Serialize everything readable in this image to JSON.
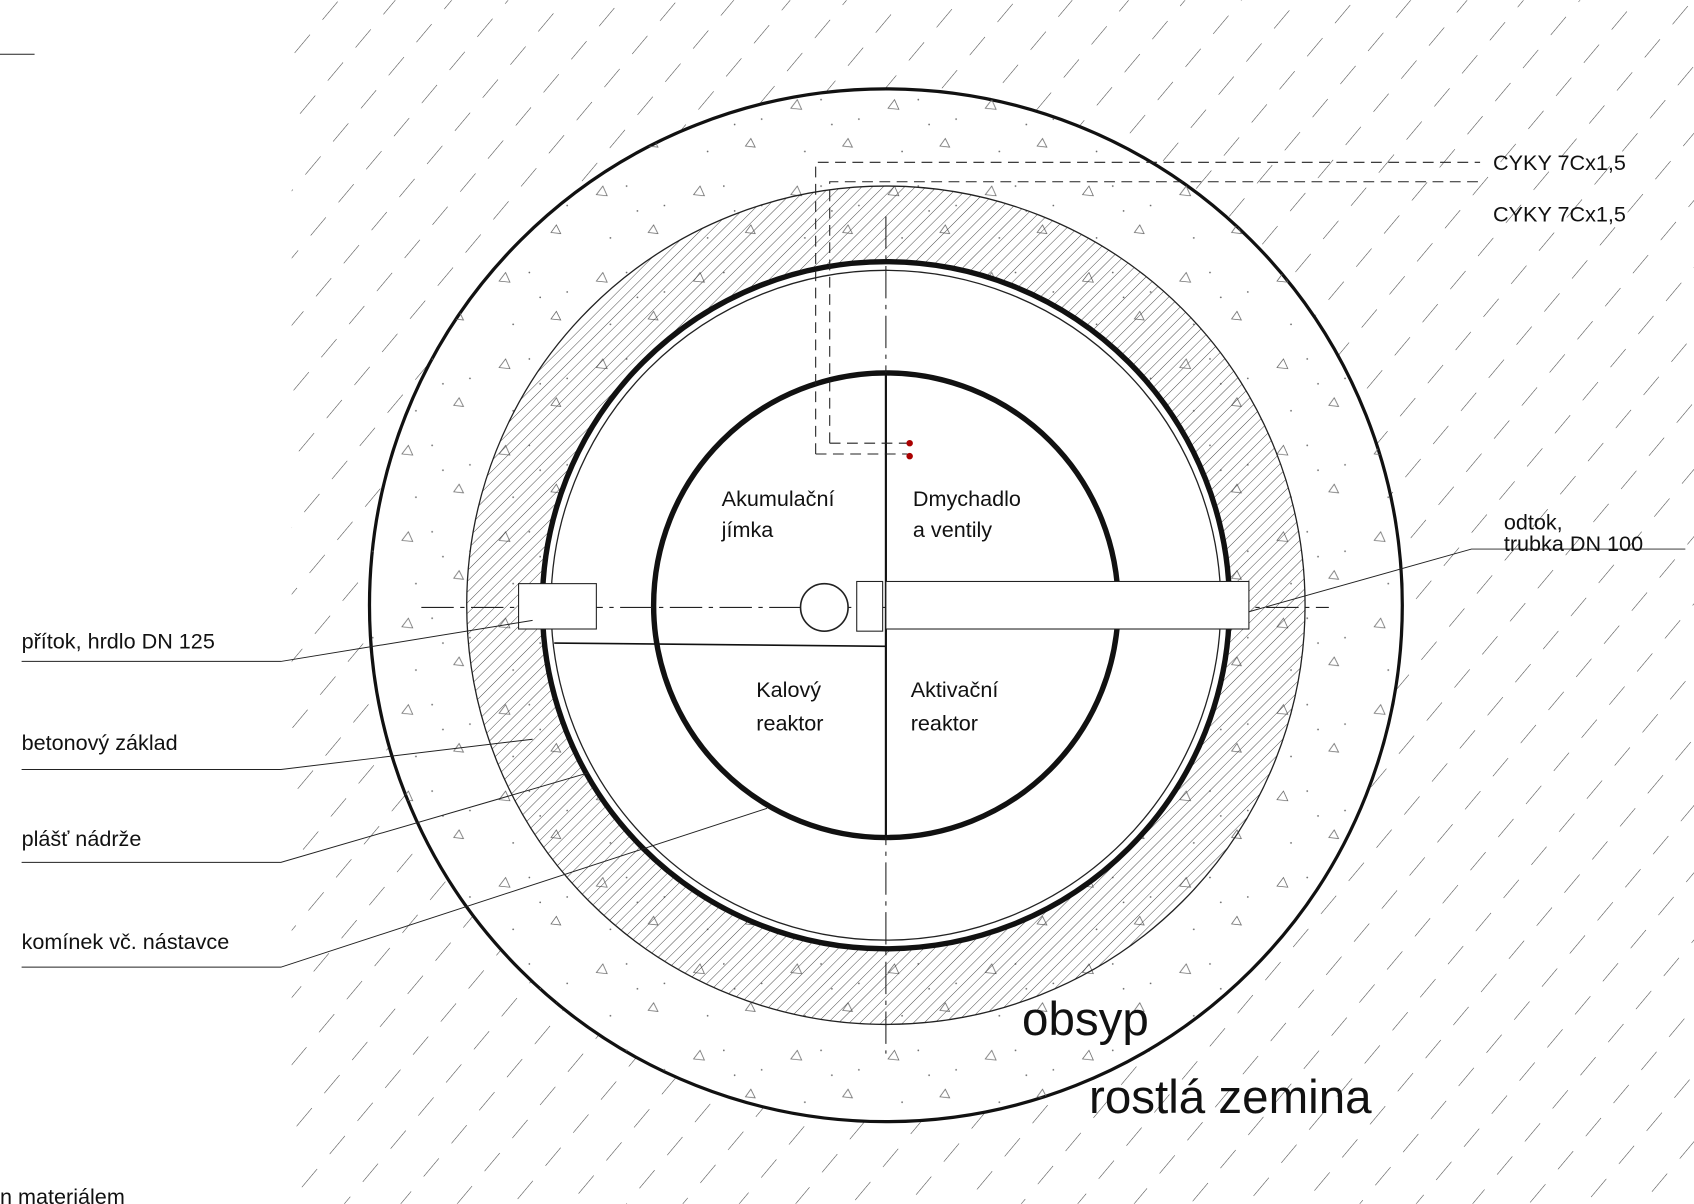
{
  "cables": {
    "top": "CYKY 7Cx1,5",
    "bottom": "CYKY 7Cx1,5"
  },
  "outlet": {
    "line1": "odtok,",
    "line2": "trubka DN 100"
  },
  "legend": [
    "přítok, hrdlo DN 125",
    "betonový základ",
    "plášť nádrže",
    "komínek vč. nástavce"
  ],
  "chambers": {
    "accumulation": [
      "Akumulační",
      "jímka"
    ],
    "blower": [
      "Dmychadlo",
      "a ventily"
    ],
    "sludge": [
      "Kalový",
      "reaktor"
    ],
    "activation": [
      "Aktivační",
      "reaktor"
    ]
  },
  "zones": {
    "backfill": "obsyp",
    "soil": "rostlá zemina"
  },
  "footnote": "n materiálem"
}
